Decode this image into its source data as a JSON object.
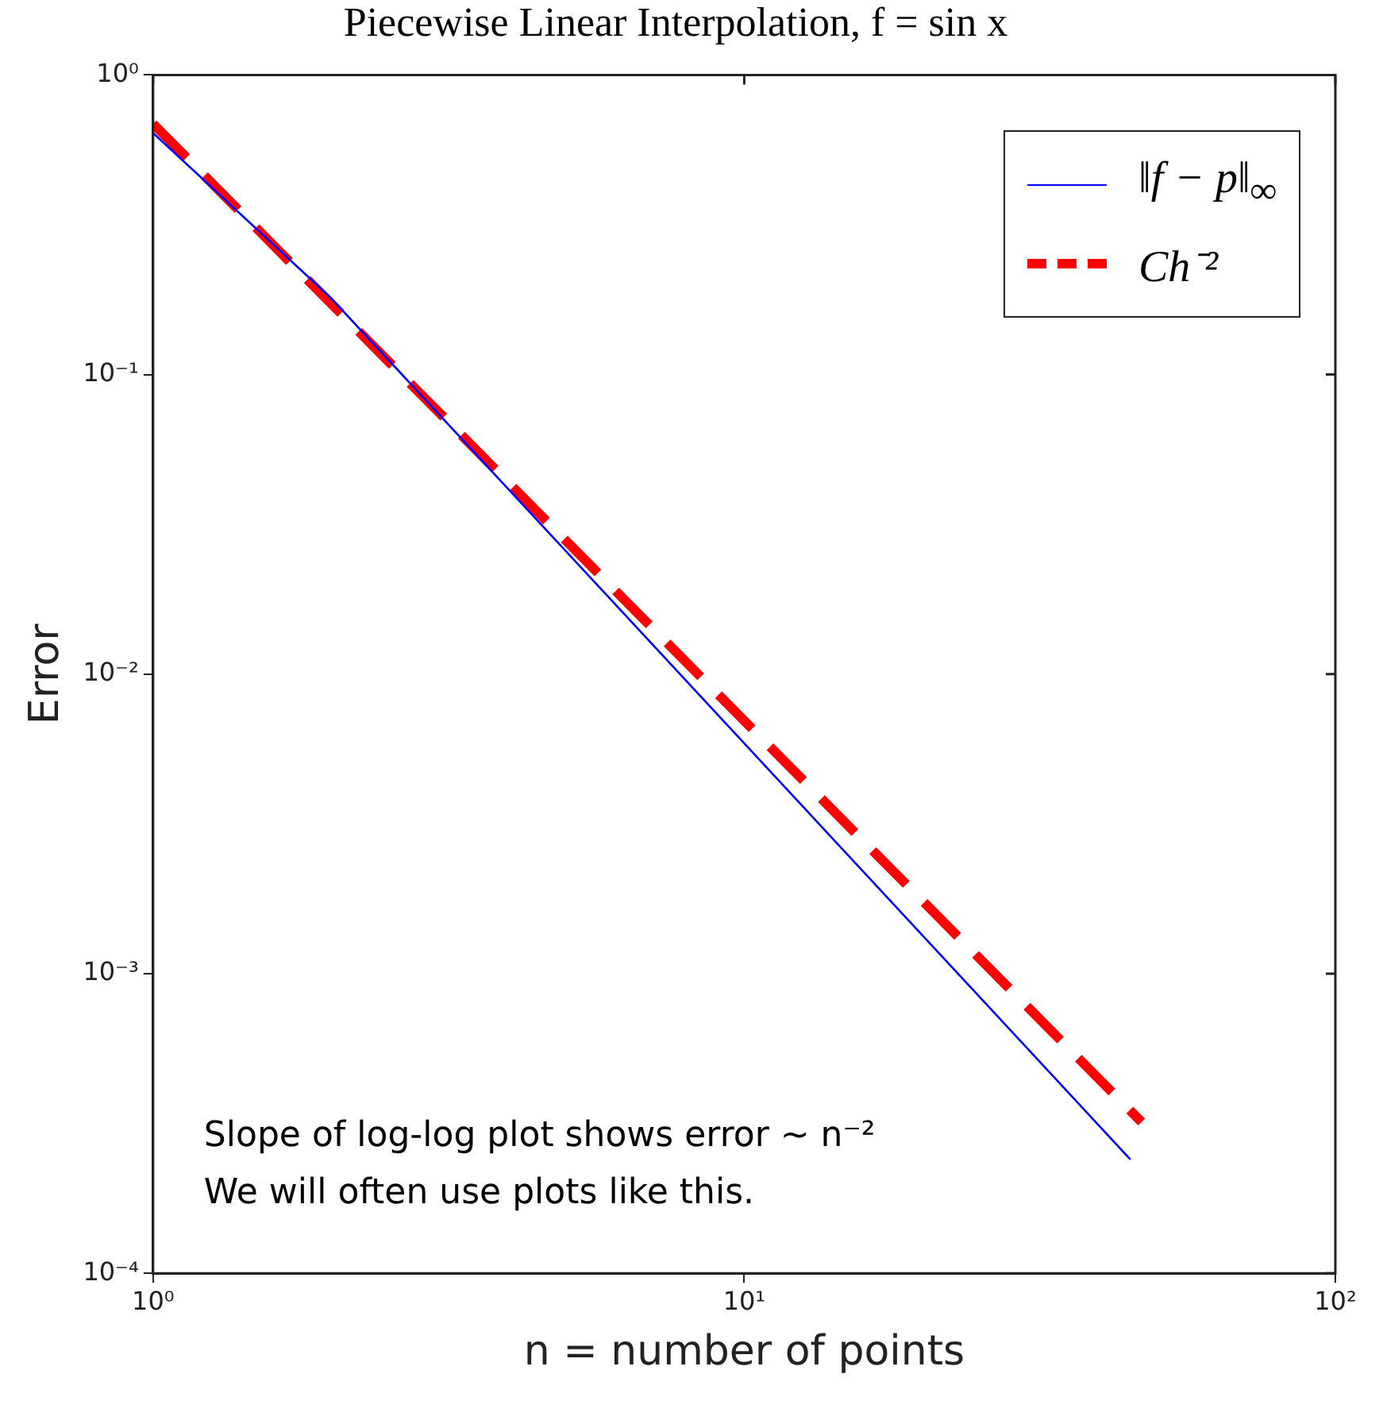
{
  "chart_data": {
    "type": "line",
    "title": "Piecewise Linear Interpolation, f = sin x",
    "xlabel": "n = number of points",
    "ylabel": "Error",
    "log": "xy",
    "grid": false,
    "legend": "top right",
    "marker": "none",
    "xlim": [
      1,
      100
    ],
    "xticks": [
      {
        "value": 1,
        "label": "10⁰"
      },
      {
        "value": 10,
        "label": "10¹"
      },
      {
        "value": 100,
        "label": "10²"
      }
    ],
    "ylim": [
      0.0001,
      1
    ],
    "yticks": [
      {
        "value": 0.0001,
        "label": "10⁻⁴"
      },
      {
        "value": 0.001,
        "label": "10⁻³"
      },
      {
        "value": 0.01,
        "label": "10⁻²"
      },
      {
        "value": 0.1,
        "label": "10⁻¹"
      },
      {
        "value": 1,
        "label": "10⁰"
      }
    ],
    "series": [
      {
        "name": "‖f − p‖$_{∞}$",
        "color": "#0000ff",
        "line_style": "solid",
        "x": [
          1,
          2,
          45
        ],
        "values": [
          0.64,
          0.18,
          0.00024
        ]
      },
      {
        "name": "Ch⁻²",
        "color": "#ff0000",
        "line_style": "dashed",
        "x": [
          1,
          47
        ],
        "values": [
          0.687,
          0.00032
        ]
      }
    ],
    "annotations": [
      "Slope of log-log plot shows error ~ n⁻²",
      "We will often use plots like this."
    ]
  }
}
